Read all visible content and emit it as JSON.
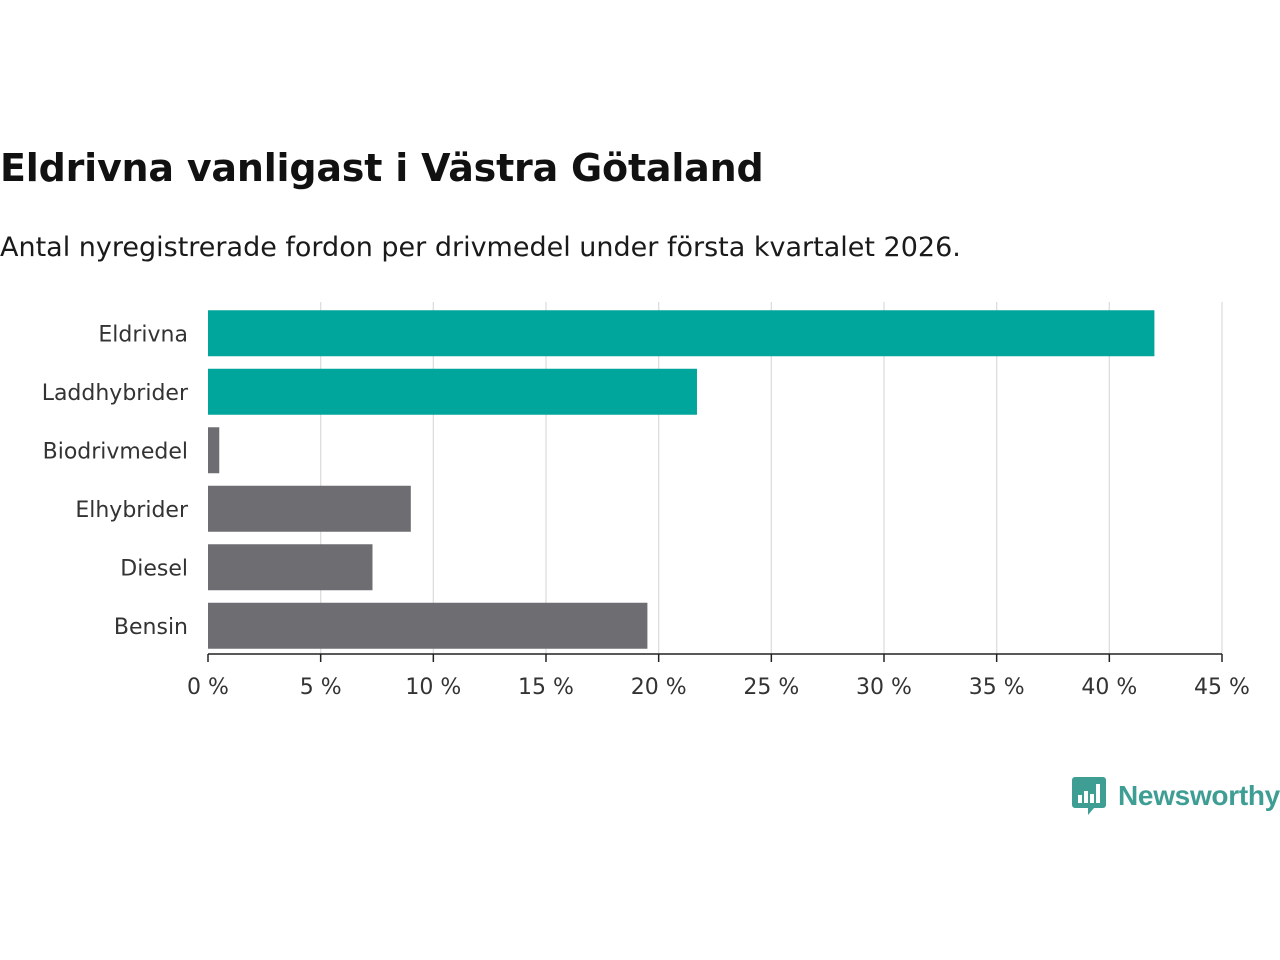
{
  "header": {
    "title": "Eldrivna vanligast i Västra Götaland",
    "subtitle": "Antal nyregistrerade fordon per drivmedel under första kvartalet 2026."
  },
  "brand": {
    "name": "Newsworthy"
  },
  "colors": {
    "highlight": "#00a59b",
    "default": "#6e6d72",
    "grid": "#dddddd",
    "axis": "#222222",
    "text": "#333333"
  },
  "chart_data": {
    "type": "bar",
    "orientation": "horizontal",
    "categories": [
      "Eldrivna",
      "Laddhybrider",
      "Biodrivmedel",
      "Elhybrider",
      "Diesel",
      "Bensin"
    ],
    "values": [
      42.0,
      21.7,
      0.5,
      9.0,
      7.3,
      19.5
    ],
    "highlight": [
      true,
      true,
      false,
      false,
      false,
      false
    ],
    "xlim": [
      0,
      45
    ],
    "xticks": [
      0,
      5,
      10,
      15,
      20,
      25,
      30,
      35,
      40,
      45
    ],
    "tick_labels": [
      "0 %",
      "5 %",
      "10 %",
      "15 %",
      "20 %",
      "25 %",
      "30 %",
      "35 %",
      "40 %",
      "45 %"
    ],
    "grid": true,
    "xlabel": "",
    "ylabel": ""
  }
}
